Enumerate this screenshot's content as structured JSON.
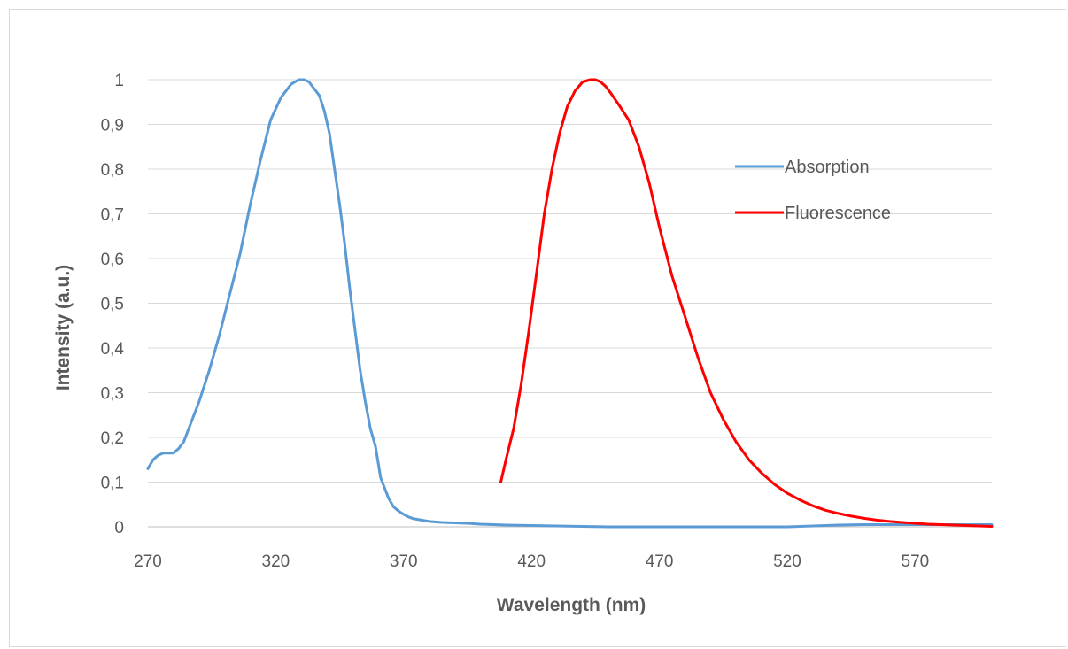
{
  "chart_data": {
    "type": "line",
    "title": "",
    "xlabel": "Wavelength (nm)",
    "ylabel": "Intensity (a.u.)",
    "xlim": [
      270,
      600
    ],
    "ylim": [
      0,
      1
    ],
    "x_ticks": [
      270,
      320,
      370,
      420,
      470,
      520,
      570
    ],
    "x_tick_labels": [
      "270",
      "320",
      "370",
      "420",
      "470",
      "520",
      "570"
    ],
    "y_ticks": [
      0,
      0.1,
      0.2,
      0.3,
      0.4,
      0.5,
      0.6,
      0.7,
      0.8,
      0.9,
      1
    ],
    "y_tick_labels": [
      "0",
      "0,1",
      "0,2",
      "0,3",
      "0,4",
      "0,5",
      "0,6",
      "0,7",
      "0,8",
      "0,9",
      "1"
    ],
    "grid": "horizontal",
    "legend_position": "right",
    "series": [
      {
        "name": "Absorption",
        "color": "#5b9bd5",
        "x": [
          270,
          272,
          274,
          276,
          278,
          280,
          282,
          284,
          286,
          288,
          290,
          294,
          298,
          302,
          306,
          310,
          314,
          318,
          322,
          326,
          329,
          331,
          333,
          335,
          337,
          339,
          341,
          343,
          345,
          347,
          349,
          351,
          353,
          355,
          357,
          359,
          361,
          363,
          364,
          365,
          366,
          368,
          370,
          372,
          374,
          376,
          378,
          380,
          385,
          390,
          395,
          400,
          410,
          420,
          430,
          440,
          450,
          460,
          470,
          480,
          490,
          500,
          510,
          520,
          530,
          540,
          550,
          560,
          570,
          580,
          590,
          600
        ],
        "y": [
          0.13,
          0.15,
          0.16,
          0.165,
          0.165,
          0.165,
          0.175,
          0.19,
          0.22,
          0.25,
          0.28,
          0.35,
          0.43,
          0.52,
          0.61,
          0.72,
          0.82,
          0.91,
          0.96,
          0.99,
          1.0,
          1.0,
          0.995,
          0.98,
          0.965,
          0.93,
          0.88,
          0.8,
          0.72,
          0.63,
          0.53,
          0.44,
          0.35,
          0.28,
          0.22,
          0.18,
          0.11,
          0.08,
          0.065,
          0.055,
          0.045,
          0.035,
          0.028,
          0.022,
          0.018,
          0.016,
          0.014,
          0.012,
          0.01,
          0.009,
          0.008,
          0.006,
          0.004,
          0.003,
          0.002,
          0.001,
          0.0,
          0.0,
          0.0,
          0.0,
          0.0,
          0.0,
          0.0,
          0.0,
          0.002,
          0.004,
          0.005,
          0.005,
          0.005,
          0.005,
          0.005,
          0.005
        ]
      },
      {
        "name": "Fluorescence",
        "color": "#ff0000",
        "x": [
          408,
          410,
          413,
          416,
          419,
          422,
          425,
          428,
          431,
          434,
          437,
          440,
          443,
          445,
          447,
          449,
          451,
          454,
          458,
          462,
          466,
          470,
          475,
          480,
          485,
          490,
          495,
          500,
          505,
          510,
          515,
          520,
          525,
          530,
          535,
          540,
          545,
          550,
          555,
          560,
          565,
          570,
          575,
          580,
          585,
          590,
          595,
          600
        ],
        "y": [
          0.1,
          0.15,
          0.22,
          0.32,
          0.44,
          0.57,
          0.7,
          0.8,
          0.88,
          0.94,
          0.975,
          0.995,
          1.0,
          1.0,
          0.995,
          0.985,
          0.97,
          0.945,
          0.91,
          0.85,
          0.77,
          0.67,
          0.56,
          0.47,
          0.38,
          0.3,
          0.24,
          0.19,
          0.15,
          0.12,
          0.095,
          0.075,
          0.06,
          0.047,
          0.037,
          0.03,
          0.024,
          0.019,
          0.015,
          0.012,
          0.01,
          0.008,
          0.006,
          0.005,
          0.004,
          0.003,
          0.002,
          0.001
        ]
      }
    ]
  }
}
